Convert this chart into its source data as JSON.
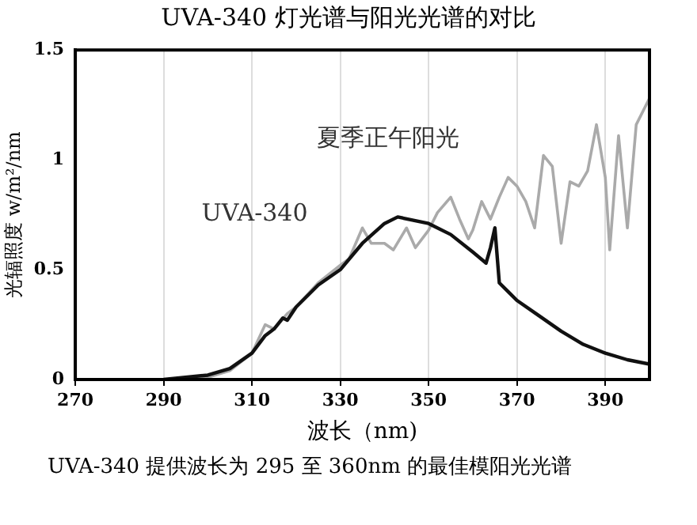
{
  "chart_data": {
    "type": "line",
    "title": "UVA-340 灯光谱与阳光光谱的对比",
    "xlabel": "波长（nm)",
    "ylabel": "光辐照度 w/m²/nm",
    "annotations": [
      "UVA-340 提供波长为 295 至 360nm 的最佳模阳光光谱"
    ],
    "xlim": [
      270,
      400
    ],
    "xticks": [
      270,
      290,
      310,
      330,
      350,
      370,
      390
    ],
    "ylim": [
      0,
      1.5
    ],
    "yticks": [
      0,
      0.5,
      1,
      1.5
    ],
    "grid": "x",
    "legend": false,
    "marker": "none",
    "line_style": "solid",
    "series": [
      {
        "name": "UVA-340",
        "color": "#111111",
        "x": [
          290,
          300,
          305,
          310,
          313,
          315,
          317,
          318,
          320,
          325,
          330,
          335,
          340,
          343,
          350,
          355,
          360,
          363,
          364,
          365,
          366,
          368,
          370,
          375,
          380,
          385,
          390,
          395,
          400
        ],
        "values": [
          0,
          0.02,
          0.05,
          0.12,
          0.2,
          0.23,
          0.28,
          0.27,
          0.33,
          0.43,
          0.5,
          0.62,
          0.71,
          0.74,
          0.71,
          0.66,
          0.58,
          0.53,
          0.6,
          0.69,
          0.44,
          0.4,
          0.36,
          0.29,
          0.22,
          0.16,
          0.12,
          0.09,
          0.07
        ]
      },
      {
        "name": "夏季正午阳光",
        "color": "#aaaaaa",
        "x": [
          290,
          300,
          305,
          310,
          313,
          315,
          318,
          320,
          325,
          330,
          332,
          335,
          337,
          340,
          342,
          345,
          347,
          350,
          352,
          355,
          357,
          359,
          360,
          362,
          364,
          366,
          368,
          370,
          372,
          374,
          376,
          378,
          380,
          382,
          384,
          386,
          388,
          390,
          391,
          393,
          395,
          397,
          400
        ],
        "values": [
          0,
          0.01,
          0.04,
          0.12,
          0.25,
          0.23,
          0.3,
          0.33,
          0.44,
          0.52,
          0.55,
          0.69,
          0.62,
          0.62,
          0.59,
          0.69,
          0.6,
          0.68,
          0.76,
          0.83,
          0.73,
          0.64,
          0.68,
          0.81,
          0.73,
          0.83,
          0.92,
          0.88,
          0.81,
          0.69,
          1.02,
          0.97,
          0.62,
          0.9,
          0.88,
          0.95,
          1.16,
          0.92,
          0.59,
          1.11,
          0.69,
          1.16,
          1.28
        ]
      }
    ]
  }
}
